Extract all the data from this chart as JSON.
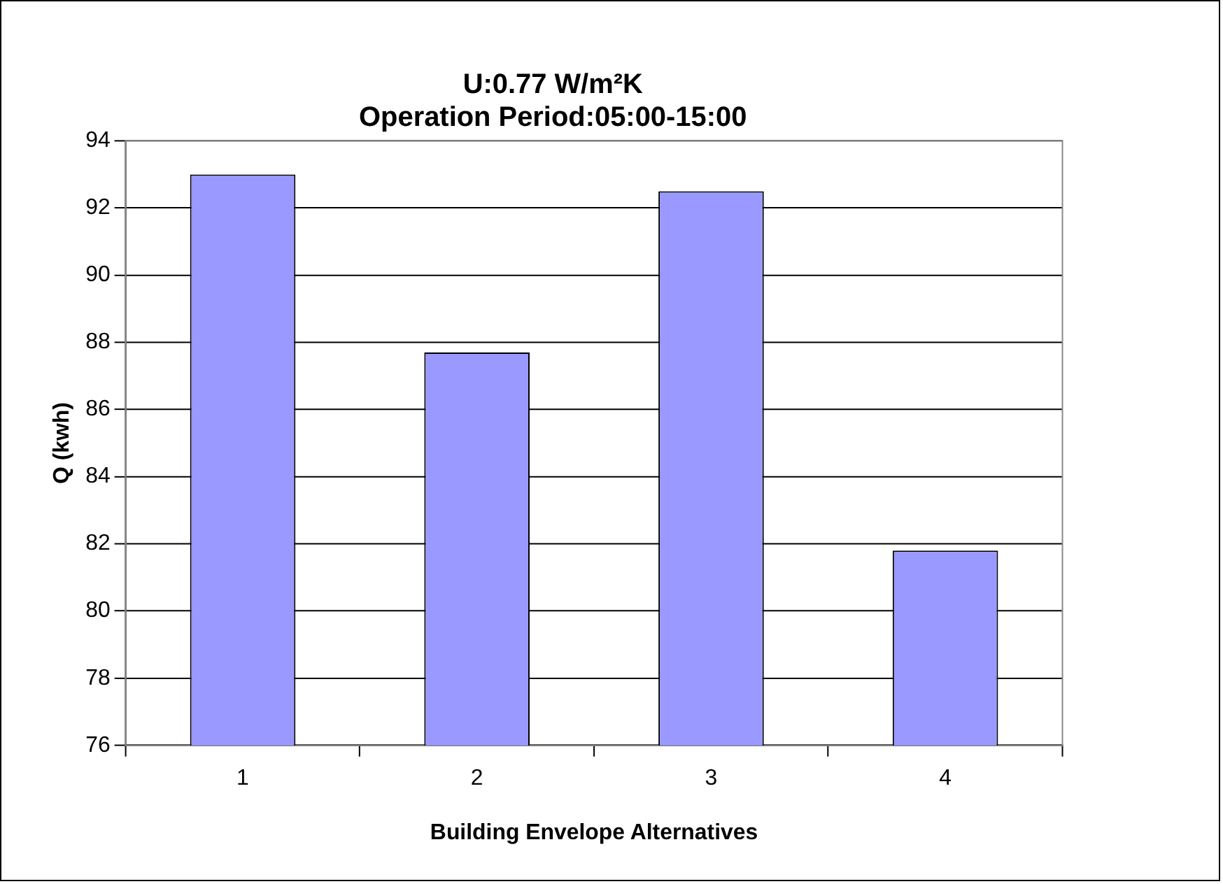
{
  "chart_data": {
    "type": "bar",
    "title": "U:0.77 W/m²K\nOperation Period:05:00-15:00",
    "xlabel": "Building Envelope Alternatives",
    "ylabel": "Q (kwh)",
    "categories": [
      "1",
      "2",
      "3",
      "4"
    ],
    "values": [
      93.0,
      87.7,
      92.5,
      81.8
    ],
    "color": "#9999ff",
    "ylim": [
      76,
      94
    ],
    "yticks": [
      76,
      78,
      80,
      82,
      84,
      86,
      88,
      90,
      92,
      94
    ],
    "grid": "y",
    "legend": false
  }
}
